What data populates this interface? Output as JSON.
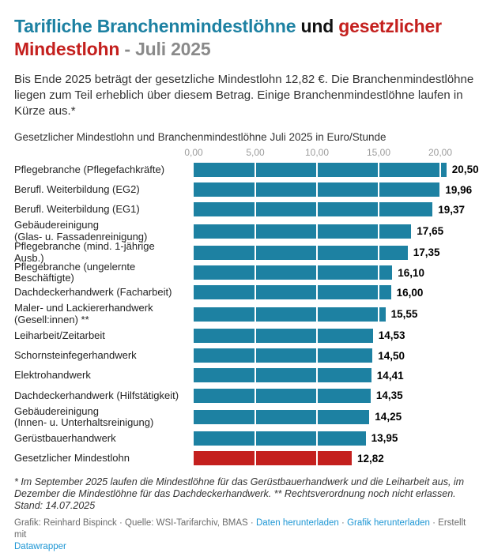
{
  "header": {
    "title_blue": "Tarifliche Branchenmindestlöhne",
    "title_and": " und ",
    "title_red": "gesetzlicher Mindestlohn",
    "title_gray": " - Juli 2025",
    "description": "Bis Ende 2025 beträgt der gesetzliche Mindestlohn 12,82 €. Die Branchenmindestlöhne liegen zum Teil erheblich über diesem Betrag. Einige Branchenmindestlöhne laufen in Kürze aus.*",
    "subtitle": "Gesetzlicher Mindestlohn und Branchenmindestlöhne Juli 2025 in Euro/Stunde"
  },
  "chart_data": {
    "type": "bar",
    "orientation": "horizontal",
    "title": "Gesetzlicher Mindestlohn und Branchenmindestlöhne Juli 2025 in Euro/Stunde",
    "xlabel": "Euro/Stunde",
    "xlim": [
      0,
      20.5
    ],
    "grid": "white vertical gridlines over bars",
    "axis_ticks": [
      {
        "value": 0,
        "label": "0,00"
      },
      {
        "value": 5,
        "label": "5,00"
      },
      {
        "value": 10,
        "label": "10,00"
      },
      {
        "value": 15,
        "label": "15,00"
      },
      {
        "value": 20,
        "label": "20,00"
      }
    ],
    "colors": {
      "teal": "#1d81a2",
      "red": "#c4201e"
    },
    "rows": [
      {
        "label_lines": [
          "Pflegebranche (Pflegefachkräfte)"
        ],
        "value": 20.5,
        "display": "20,50",
        "color": "teal"
      },
      {
        "label_lines": [
          "Berufl. Weiterbildung (EG2)"
        ],
        "value": 19.96,
        "display": "19,96",
        "color": "teal"
      },
      {
        "label_lines": [
          "Berufl. Weiterbildung (EG1)"
        ],
        "value": 19.37,
        "display": "19,37",
        "color": "teal"
      },
      {
        "label_lines": [
          "Gebäudereinigung",
          "(Glas- u. Fassadenreinigung)"
        ],
        "value": 17.65,
        "display": "17,65",
        "color": "teal"
      },
      {
        "label_lines": [
          "Pflegebranche (mind. 1-jährige Ausb.)"
        ],
        "value": 17.35,
        "display": "17,35",
        "color": "teal"
      },
      {
        "label_lines": [
          "Pflegebranche (ungelernte Beschäftigte)"
        ],
        "value": 16.1,
        "display": "16,10",
        "color": "teal"
      },
      {
        "label_lines": [
          "Dachdeckerhandwerk (Facharbeit)"
        ],
        "value": 16.0,
        "display": "16,00",
        "color": "teal"
      },
      {
        "label_lines": [
          "Maler- und Lackiererhandwerk",
          "(Gesell:innen) **"
        ],
        "value": 15.55,
        "display": "15,55",
        "color": "teal"
      },
      {
        "label_lines": [
          "Leiharbeit/Zeitarbeit"
        ],
        "value": 14.53,
        "display": "14,53",
        "color": "teal"
      },
      {
        "label_lines": [
          "Schornsteinfegerhandwerk"
        ],
        "value": 14.5,
        "display": "14,50",
        "color": "teal"
      },
      {
        "label_lines": [
          "Elektrohandwerk"
        ],
        "value": 14.41,
        "display": "14,41",
        "color": "teal"
      },
      {
        "label_lines": [
          "Dachdeckerhandwerk (Hilfstätigkeit)"
        ],
        "value": 14.35,
        "display": "14,35",
        "color": "teal"
      },
      {
        "label_lines": [
          "Gebäudereinigung",
          "(Innen- u. Unterhaltsreinigung)"
        ],
        "value": 14.25,
        "display": "14,25",
        "color": "teal"
      },
      {
        "label_lines": [
          "Gerüstbauerhandwerk"
        ],
        "value": 13.95,
        "display": "13,95",
        "color": "teal"
      },
      {
        "label_lines": [
          "Gesetzlicher Mindestlohn"
        ],
        "value": 12.82,
        "display": "12,82",
        "color": "red"
      }
    ]
  },
  "footnote": {
    "line1": "* Im September 2025 laufen die Mindestlöhne für das Gerüstbauerhandwerk und die Leiharbeit aus, im Dezember die Mindestlöhne für das Dachdeckerhandwerk. ** Rechtsverordnung noch nicht erlassen.",
    "line2": "Stand: 14.07.2025"
  },
  "footer": {
    "credit": "Grafik: Reinhard Bispinck",
    "source": "Quelle: WSI-Tarifarchiv, BMAS",
    "download_data": "Daten herunterladen",
    "download_image": "Grafik herunterladen",
    "created_with": "Erstellt mit",
    "brand": "Datawrapper",
    "separator": "·"
  }
}
